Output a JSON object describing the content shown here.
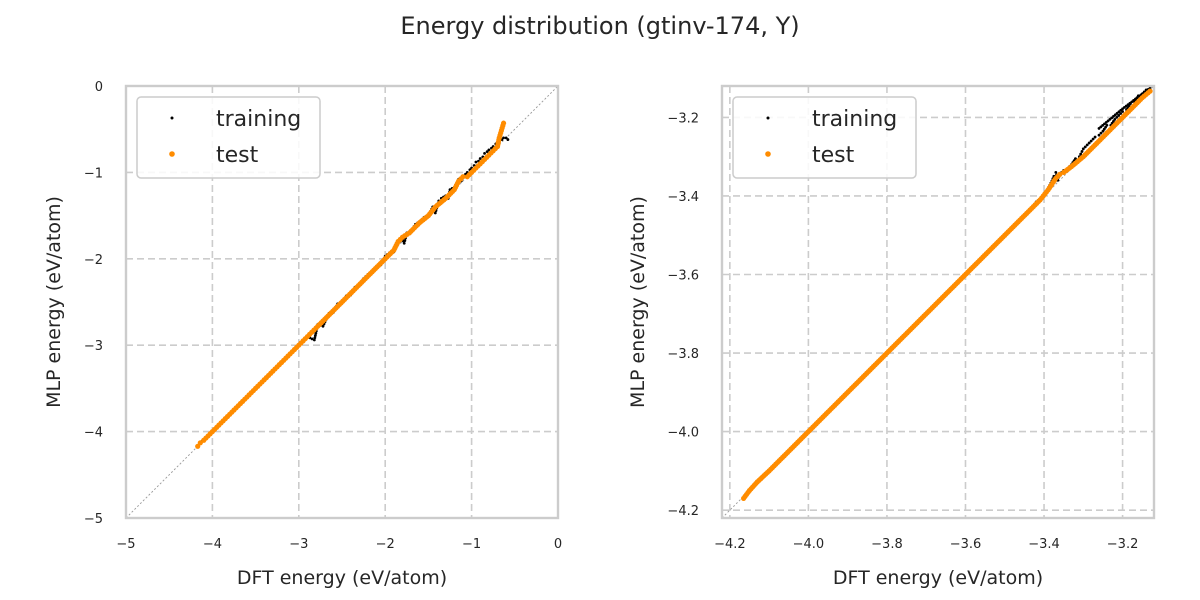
{
  "figure": {
    "title": "Energy distribution (gtinv-174, Y)"
  },
  "chart_data": [
    {
      "type": "scatter",
      "xlabel": "DFT energy (eV/atom)",
      "ylabel": "MLP energy (eV/atom)",
      "xlim": [
        -5,
        0
      ],
      "ylim": [
        -5,
        0
      ],
      "xticks": [
        -5,
        -4,
        -3,
        -2,
        -1,
        0
      ],
      "yticks": [
        -5,
        -4,
        -3,
        -2,
        -1,
        0
      ],
      "xtick_labels": [
        "−5",
        "−4",
        "−3",
        "−2",
        "−1",
        "0"
      ],
      "ytick_labels": [
        "−5",
        "−4",
        "−3",
        "−2",
        "−1",
        "0"
      ],
      "grid": true,
      "diagonal_reference_line": true,
      "legend": {
        "placement": "upper-left",
        "entries": [
          "training",
          "test"
        ]
      },
      "series": [
        {
          "name": "training",
          "color": "#000000",
          "points": [
            [
              -4.16,
              -4.16
            ],
            [
              -4.12,
              -4.11
            ],
            [
              -4.05,
              -4.05
            ],
            [
              -3.98,
              -3.98
            ],
            [
              -3.9,
              -3.9
            ],
            [
              -3.8,
              -3.8
            ],
            [
              -3.7,
              -3.7
            ],
            [
              -3.6,
              -3.6
            ],
            [
              -3.5,
              -3.5
            ],
            [
              -3.4,
              -3.4
            ],
            [
              -3.3,
              -3.3
            ],
            [
              -3.2,
              -3.2
            ],
            [
              -3.1,
              -3.1
            ],
            [
              -3.0,
              -3.0
            ],
            [
              -2.9,
              -2.9
            ],
            [
              -2.82,
              -2.94
            ],
            [
              -2.78,
              -2.76
            ],
            [
              -2.72,
              -2.78
            ],
            [
              -2.65,
              -2.63
            ],
            [
              -2.6,
              -2.62
            ],
            [
              -2.55,
              -2.52
            ],
            [
              -2.5,
              -2.5
            ],
            [
              -2.45,
              -2.43
            ],
            [
              -2.4,
              -2.42
            ],
            [
              -2.35,
              -2.33
            ],
            [
              -2.3,
              -2.3
            ],
            [
              -2.25,
              -2.23
            ],
            [
              -2.2,
              -2.18
            ],
            [
              -2.1,
              -2.1
            ],
            [
              -2.05,
              -2.07
            ],
            [
              -2.0,
              -1.97
            ],
            [
              -1.95,
              -1.93
            ],
            [
              -1.9,
              -1.92
            ],
            [
              -1.85,
              -1.82
            ],
            [
              -1.8,
              -1.77
            ],
            [
              -1.78,
              -1.82
            ],
            [
              -1.75,
              -1.7
            ],
            [
              -1.7,
              -1.68
            ],
            [
              -1.65,
              -1.6
            ],
            [
              -1.6,
              -1.57
            ],
            [
              -1.55,
              -1.52
            ],
            [
              -1.5,
              -1.5
            ],
            [
              -1.45,
              -1.4
            ],
            [
              -1.42,
              -1.47
            ],
            [
              -1.38,
              -1.33
            ],
            [
              -1.35,
              -1.3
            ],
            [
              -1.3,
              -1.27
            ],
            [
              -1.27,
              -1.3
            ],
            [
              -1.25,
              -1.2
            ],
            [
              -1.2,
              -1.17
            ],
            [
              -1.17,
              -1.12
            ],
            [
              -1.15,
              -1.08
            ],
            [
              -1.12,
              -1.1
            ],
            [
              -1.1,
              -1.05
            ],
            [
              -1.07,
              -1.02
            ],
            [
              -1.05,
              -1.0
            ],
            [
              -1.02,
              -0.97
            ],
            [
              -1.0,
              -0.95
            ],
            [
              -0.97,
              -0.92
            ],
            [
              -0.95,
              -0.88
            ],
            [
              -0.92,
              -0.87
            ],
            [
              -0.9,
              -0.84
            ],
            [
              -0.87,
              -0.82
            ],
            [
              -0.85,
              -0.78
            ],
            [
              -0.82,
              -0.76
            ],
            [
              -0.8,
              -0.74
            ],
            [
              -0.77,
              -0.72
            ],
            [
              -0.75,
              -0.7
            ],
            [
              -0.72,
              -0.67
            ],
            [
              -0.7,
              -0.66
            ],
            [
              -0.68,
              -0.64
            ],
            [
              -0.65,
              -0.62
            ],
            [
              -0.63,
              -0.6
            ],
            [
              -0.6,
              -0.6
            ],
            [
              -0.58,
              -0.62
            ]
          ]
        },
        {
          "name": "test",
          "color": "#ff8c00",
          "points": [
            [
              -4.17,
              -4.17
            ],
            [
              -4.14,
              -4.13
            ],
            [
              -4.1,
              -4.1
            ],
            [
              -4.05,
              -4.05
            ],
            [
              -4.0,
              -4.0
            ],
            [
              -3.95,
              -3.95
            ],
            [
              -3.9,
              -3.9
            ],
            [
              -3.85,
              -3.85
            ],
            [
              -3.8,
              -3.8
            ],
            [
              -3.75,
              -3.75
            ],
            [
              -3.7,
              -3.7
            ],
            [
              -3.65,
              -3.65
            ],
            [
              -3.6,
              -3.6
            ],
            [
              -3.55,
              -3.55
            ],
            [
              -3.5,
              -3.5
            ],
            [
              -3.45,
              -3.45
            ],
            [
              -3.4,
              -3.4
            ],
            [
              -3.35,
              -3.35
            ],
            [
              -3.3,
              -3.3
            ],
            [
              -3.25,
              -3.25
            ],
            [
              -3.2,
              -3.2
            ],
            [
              -3.15,
              -3.15
            ],
            [
              -3.1,
              -3.1
            ],
            [
              -3.05,
              -3.05
            ],
            [
              -3.0,
              -3.0
            ],
            [
              -2.95,
              -2.95
            ],
            [
              -2.9,
              -2.9
            ],
            [
              -2.85,
              -2.85
            ],
            [
              -2.8,
              -2.8
            ],
            [
              -2.7,
              -2.7
            ],
            [
              -2.55,
              -2.55
            ],
            [
              -2.45,
              -2.45
            ],
            [
              -2.35,
              -2.35
            ],
            [
              -2.25,
              -2.25
            ],
            [
              -2.15,
              -2.15
            ],
            [
              -2.0,
              -2.0
            ],
            [
              -1.9,
              -1.9
            ],
            [
              -1.85,
              -1.8
            ],
            [
              -1.8,
              -1.75
            ],
            [
              -1.72,
              -1.7
            ],
            [
              -1.6,
              -1.58
            ],
            [
              -1.5,
              -1.5
            ],
            [
              -1.42,
              -1.4
            ],
            [
              -1.3,
              -1.3
            ],
            [
              -1.2,
              -1.2
            ],
            [
              -1.15,
              -1.1
            ],
            [
              -1.1,
              -1.05
            ],
            [
              -1.05,
              -1.05
            ],
            [
              -1.0,
              -1.0
            ],
            [
              -0.95,
              -0.95
            ],
            [
              -0.9,
              -0.9
            ],
            [
              -0.85,
              -0.85
            ],
            [
              -0.8,
              -0.8
            ],
            [
              -0.75,
              -0.75
            ],
            [
              -0.7,
              -0.7
            ],
            [
              -0.68,
              -0.6
            ],
            [
              -0.63,
              -0.43
            ]
          ]
        }
      ]
    },
    {
      "type": "scatter",
      "xlabel": "DFT energy (eV/atom)",
      "ylabel": "MLP energy (eV/atom)",
      "xlim": [
        -4.22,
        -3.12
      ],
      "ylim": [
        -4.22,
        -3.12
      ],
      "xticks": [
        -4.2,
        -4.0,
        -3.8,
        -3.6,
        -3.4,
        -3.2
      ],
      "yticks": [
        -4.2,
        -4.0,
        -3.8,
        -3.6,
        -3.4,
        -3.2
      ],
      "xtick_labels": [
        "−4.2",
        "−4.0",
        "−3.8",
        "−3.6",
        "−3.4",
        "−3.2"
      ],
      "ytick_labels": [
        "−4.2",
        "−4.0",
        "−3.8",
        "−3.6",
        "−3.4",
        "−3.2"
      ],
      "grid": true,
      "diagonal_reference_line": true,
      "legend": {
        "placement": "upper-left",
        "entries": [
          "training",
          "test"
        ]
      },
      "series": [
        {
          "name": "training",
          "color": "#000000",
          "points": [
            [
              -4.16,
              -4.165
            ],
            [
              -4.12,
              -4.118
            ],
            [
              -4.08,
              -4.078
            ],
            [
              -4.04,
              -4.041
            ],
            [
              -4.0,
              -4.0
            ],
            [
              -3.96,
              -3.96
            ],
            [
              -3.92,
              -3.918
            ],
            [
              -3.88,
              -3.882
            ],
            [
              -3.84,
              -3.838
            ],
            [
              -3.8,
              -3.8
            ],
            [
              -3.76,
              -3.762
            ],
            [
              -3.72,
              -3.718
            ],
            [
              -3.68,
              -3.682
            ],
            [
              -3.64,
              -3.638
            ],
            [
              -3.6,
              -3.6
            ],
            [
              -3.56,
              -3.562
            ],
            [
              -3.52,
              -3.518
            ],
            [
              -3.48,
              -3.478
            ],
            [
              -3.44,
              -3.442
            ],
            [
              -3.42,
              -3.415
            ],
            [
              -3.4,
              -3.4
            ],
            [
              -3.38,
              -3.362
            ],
            [
              -3.375,
              -3.35
            ],
            [
              -3.37,
              -3.34
            ],
            [
              -3.365,
              -3.36
            ],
            [
              -3.36,
              -3.345
            ],
            [
              -3.35,
              -3.335
            ],
            [
              -3.34,
              -3.33
            ],
            [
              -3.33,
              -3.32
            ],
            [
              -3.32,
              -3.305
            ],
            [
              -3.31,
              -3.3
            ],
            [
              -3.3,
              -3.28
            ],
            [
              -3.29,
              -3.27
            ],
            [
              -3.28,
              -3.26
            ],
            [
              -3.27,
              -3.25
            ],
            [
              -3.26,
              -3.245
            ],
            [
              -3.25,
              -3.235
            ],
            [
              -3.24,
              -3.22
            ],
            [
              -3.23,
              -3.22
            ],
            [
              -3.22,
              -3.205
            ],
            [
              -3.21,
              -3.195
            ],
            [
              -3.2,
              -3.185
            ],
            [
              -3.19,
              -3.18
            ],
            [
              -3.18,
              -3.165
            ],
            [
              -3.17,
              -3.16
            ],
            [
              -3.16,
              -3.145
            ],
            [
              -3.15,
              -3.14
            ],
            [
              -3.14,
              -3.13
            ],
            [
              -3.13,
              -3.125
            ],
            [
              -3.2,
              -3.178
            ],
            [
              -3.26,
              -3.228
            ]
          ]
        },
        {
          "name": "test",
          "color": "#ff8c00",
          "points": [
            [
              -4.165,
              -4.17
            ],
            [
              -4.15,
              -4.15
            ],
            [
              -4.13,
              -4.128
            ],
            [
              -4.1,
              -4.1
            ],
            [
              -4.07,
              -4.07
            ],
            [
              -4.04,
              -4.04
            ],
            [
              -4.01,
              -4.01
            ],
            [
              -3.98,
              -3.98
            ],
            [
              -3.95,
              -3.95
            ],
            [
              -3.92,
              -3.92
            ],
            [
              -3.89,
              -3.89
            ],
            [
              -3.86,
              -3.86
            ],
            [
              -3.83,
              -3.83
            ],
            [
              -3.8,
              -3.8
            ],
            [
              -3.77,
              -3.77
            ],
            [
              -3.74,
              -3.74
            ],
            [
              -3.71,
              -3.71
            ],
            [
              -3.68,
              -3.68
            ],
            [
              -3.65,
              -3.65
            ],
            [
              -3.62,
              -3.62
            ],
            [
              -3.59,
              -3.59
            ],
            [
              -3.56,
              -3.56
            ],
            [
              -3.53,
              -3.53
            ],
            [
              -3.5,
              -3.5
            ],
            [
              -3.47,
              -3.47
            ],
            [
              -3.44,
              -3.44
            ],
            [
              -3.41,
              -3.41
            ],
            [
              -3.39,
              -3.385
            ],
            [
              -3.38,
              -3.37
            ],
            [
              -3.37,
              -3.355
            ],
            [
              -3.36,
              -3.345
            ],
            [
              -3.35,
              -3.34
            ],
            [
              -3.33,
              -3.325
            ],
            [
              -3.3,
              -3.3
            ],
            [
              -3.27,
              -3.27
            ],
            [
              -3.24,
              -3.24
            ],
            [
              -3.21,
              -3.21
            ],
            [
              -3.18,
              -3.18
            ],
            [
              -3.15,
              -3.15
            ],
            [
              -3.13,
              -3.133
            ]
          ]
        }
      ]
    }
  ]
}
